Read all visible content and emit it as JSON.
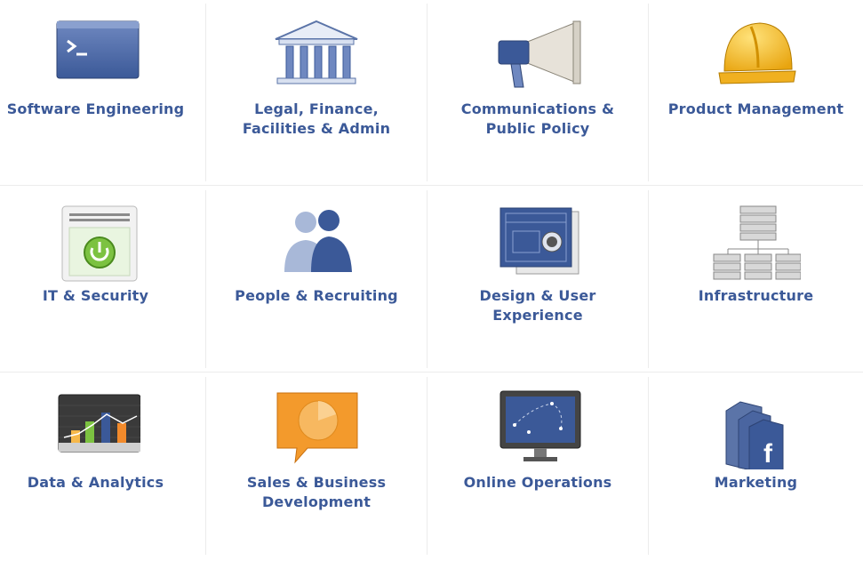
{
  "categories": [
    {
      "label": "Software Engineering",
      "icon": "terminal-icon"
    },
    {
      "label": "Legal, Finance, Facilities & Admin",
      "icon": "bank-building-icon"
    },
    {
      "label": "Communications & Public Policy",
      "icon": "megaphone-icon"
    },
    {
      "label": "Product Management",
      "icon": "hard-hat-icon"
    },
    {
      "label": "IT & Security",
      "icon": "power-server-icon"
    },
    {
      "label": "People & Recruiting",
      "icon": "people-silhouettes-icon"
    },
    {
      "label": "Design & User Experience",
      "icon": "blueprint-icon"
    },
    {
      "label": "Infrastructure",
      "icon": "server-network-icon"
    },
    {
      "label": "Data & Analytics",
      "icon": "analytics-chart-icon"
    },
    {
      "label": "Sales & Business Development",
      "icon": "sales-chat-bubble-icon"
    },
    {
      "label": "Online Operations",
      "icon": "monitor-icon"
    },
    {
      "label": "Marketing",
      "icon": "facebook-books-icon"
    }
  ],
  "colors": {
    "label": "#3b5998",
    "divider": "#ececec"
  }
}
